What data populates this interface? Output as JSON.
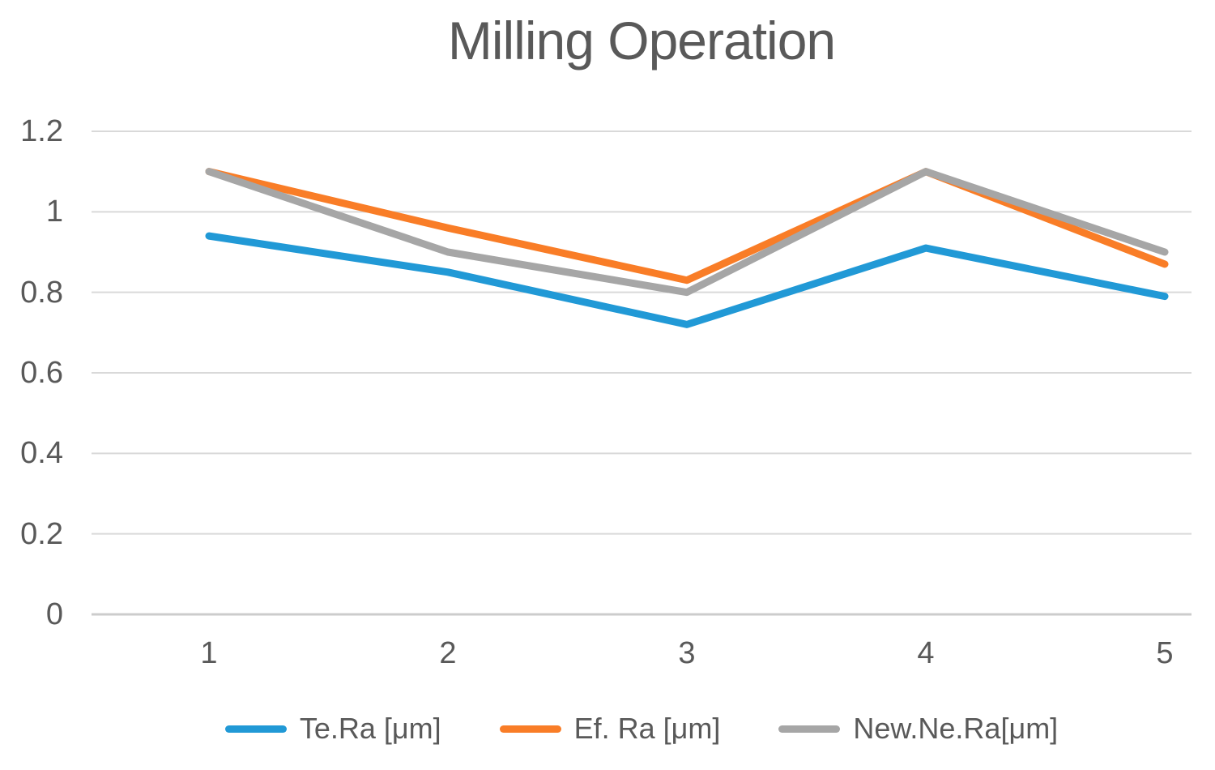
{
  "chart_data": {
    "type": "line",
    "title": "Milling Operation",
    "categories": [
      "1",
      "2",
      "3",
      "4",
      "5"
    ],
    "series": [
      {
        "name": "Te.Ra [μm]",
        "color": "#2199D6",
        "values": [
          0.94,
          0.85,
          0.72,
          0.91,
          0.79
        ]
      },
      {
        "name": "Ef. Ra [μm]",
        "color": "#F97D27",
        "values": [
          1.1,
          0.96,
          0.83,
          1.1,
          0.87
        ]
      },
      {
        "name": "New.Ne.Ra[μm]",
        "color": "#A6A6A6",
        "values": [
          1.1,
          0.9,
          0.8,
          1.1,
          0.9
        ]
      }
    ],
    "ylim": [
      0,
      1.2
    ],
    "ytick_values": [
      0,
      0.2,
      0.4,
      0.6,
      0.8,
      1,
      1.2
    ],
    "ytick_labels": [
      "0",
      "0.2",
      "0.4",
      "0.6",
      "0.8",
      "1",
      "1.2"
    ],
    "grid": true,
    "legend_position": "bottom"
  },
  "style": {
    "text_color": "#595959",
    "grid_color": "#D9D9D9",
    "axis_color": "#CCCCCC",
    "background": "#FFFFFF"
  }
}
